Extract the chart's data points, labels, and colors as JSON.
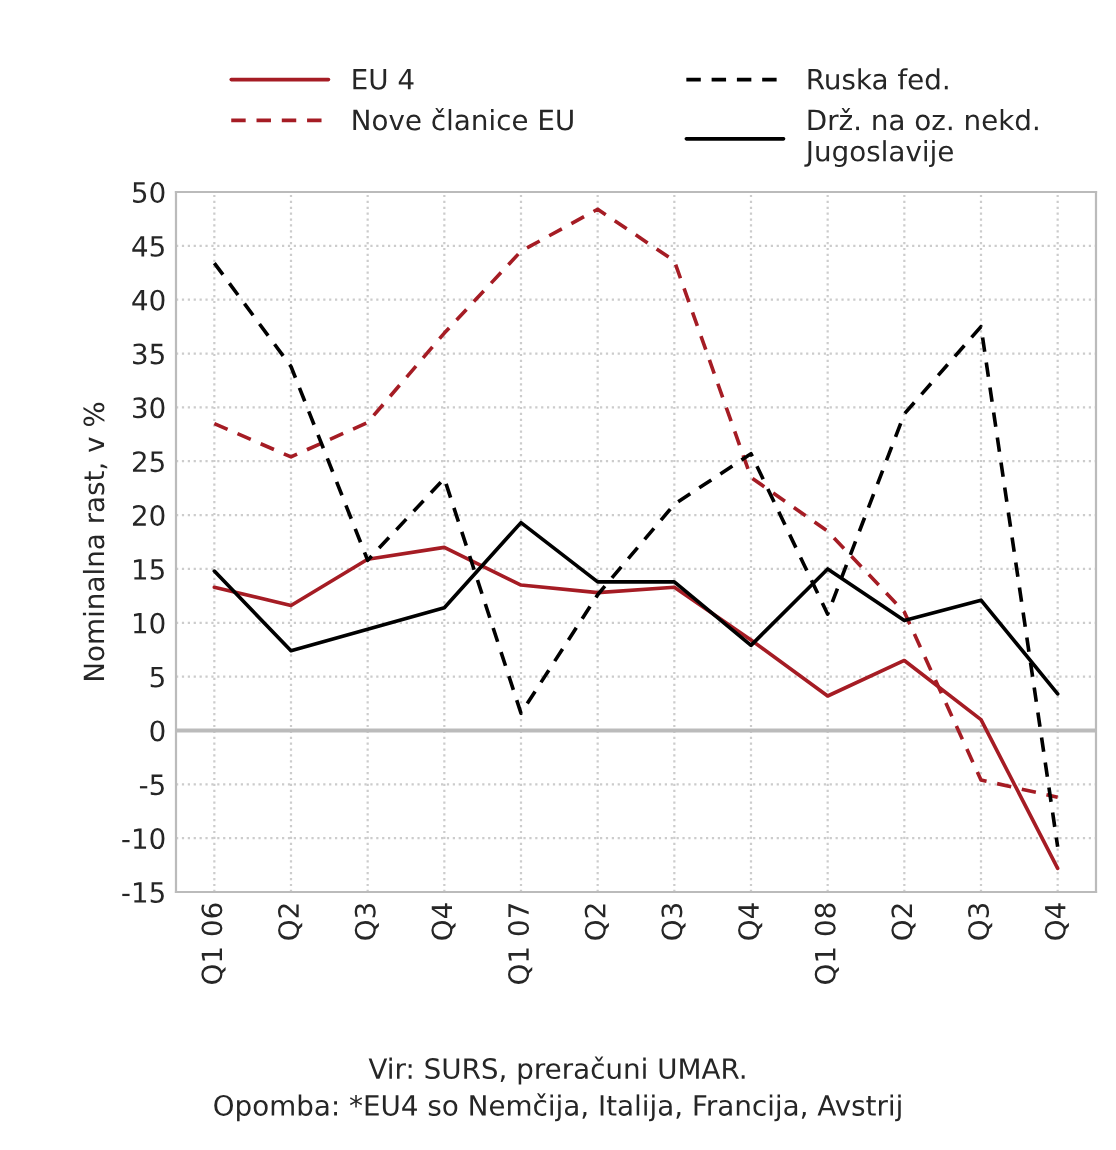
{
  "chart_data": {
    "type": "line",
    "ylabel": "Nominalna rast, v %",
    "categories": [
      "Q1 06",
      "Q2",
      "Q3",
      "Q4",
      "Q1 07",
      "Q2",
      "Q3",
      "Q4",
      "Q1 08",
      "Q2",
      "Q3",
      "Q4"
    ],
    "series": [
      {
        "name": "EU 4",
        "color": "#a51c24",
        "line_style": "solid",
        "values": [
          13.3,
          11.6,
          15.9,
          17.0,
          13.5,
          12.8,
          13.3,
          8.4,
          3.2,
          6.5,
          1.0,
          -12.8
        ]
      },
      {
        "name": "Nove članice EU",
        "color": "#a51c24",
        "line_style": "dashed",
        "values": [
          28.5,
          25.4,
          28.6,
          36.9,
          44.5,
          48.4,
          43.6,
          23.5,
          18.5,
          11.0,
          -4.6,
          -6.2
        ]
      },
      {
        "name": "Ruska fed.",
        "color": "#000000",
        "line_style": "dashed",
        "values": [
          43.4,
          33.8,
          15.8,
          23.4,
          1.6,
          12.6,
          21.0,
          25.7,
          10.8,
          29.4,
          37.5,
          -10.8
        ]
      },
      {
        "name": "Drž. na oz. nekd.\nJugoslavije",
        "color": "#000000",
        "line_style": "solid",
        "values": [
          14.8,
          7.4,
          9.4,
          11.4,
          19.3,
          13.8,
          13.8,
          7.9,
          15.0,
          10.2,
          12.1,
          3.4
        ]
      }
    ],
    "ylim": [
      -15,
      50
    ],
    "yticks": [
      -15,
      -10,
      -5,
      0,
      5,
      10,
      15,
      20,
      25,
      30,
      35,
      40,
      45,
      50
    ],
    "grid": true,
    "legend": "top",
    "annotations": [
      "Vir: SURS, preračuni UMAR.",
      "Opomba: *EU4 so Nemčija, Italija, Francija, Avstrij"
    ]
  }
}
